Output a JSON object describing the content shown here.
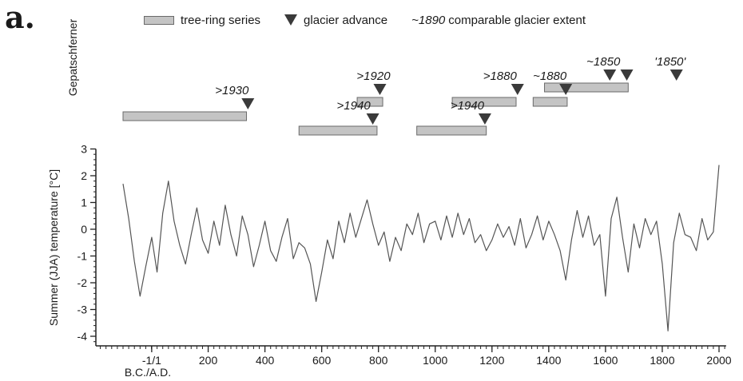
{
  "panel_letter": "a.",
  "legend": {
    "tree_ring": "tree-ring series",
    "glacier_advance": "glacier advance",
    "comparable_prefix": "~1890",
    "comparable_rest": "comparable glacier extent"
  },
  "glacier_name": "Gepatschferner",
  "colors": {
    "bar_fill": "#c4c4c4",
    "bar_stroke": "#6a6a6a",
    "marker": "#3a3a3a",
    "line": "#555555"
  },
  "tree_ring_series": [
    {
      "start": -100,
      "end": 335
    },
    {
      "start": 520,
      "end": 795
    },
    {
      "start": 725,
      "end": 815
    },
    {
      "start": 935,
      "end": 1180
    },
    {
      "start": 1060,
      "end": 1285
    },
    {
      "start": 1345,
      "end": 1465
    },
    {
      "start": 1385,
      "end": 1680
    }
  ],
  "glacier_advances": [
    {
      "year": 340,
      "label": ">1930"
    },
    {
      "year": 805,
      "label": ">1920"
    },
    {
      "year": 780,
      "label": ">1940"
    },
    {
      "year": 1290,
      "label": ">1880"
    },
    {
      "year": 1460,
      "label": "~1880"
    },
    {
      "year": 1175,
      "label": ">1940"
    },
    {
      "year": 1615,
      "label": "~1850"
    },
    {
      "year": 1675,
      "label": ""
    },
    {
      "year": 1850,
      "label": "'1850'"
    }
  ],
  "chart_data": {
    "type": "line",
    "ylabel": "Summer (JJA) temperature [°C]",
    "xlabel": "B.C./A.D.",
    "xlim": [
      -190,
      2025
    ],
    "ylim": [
      -4.2,
      3.0
    ],
    "x_ticks": [
      {
        "value": 1,
        "label": "-1/1"
      },
      {
        "value": 200,
        "label": "200"
      },
      {
        "value": 400,
        "label": "400"
      },
      {
        "value": 600,
        "label": "600"
      },
      {
        "value": 800,
        "label": "800"
      },
      {
        "value": 1000,
        "label": "1000"
      },
      {
        "value": 1200,
        "label": "1200"
      },
      {
        "value": 1400,
        "label": "1400"
      },
      {
        "value": 1600,
        "label": "1600"
      },
      {
        "value": 1800,
        "label": "1800"
      },
      {
        "value": 2000,
        "label": "2000"
      }
    ],
    "y_ticks": [
      {
        "value": 3,
        "label": "3"
      },
      {
        "value": 2,
        "label": "2"
      },
      {
        "value": 1,
        "label": "1"
      },
      {
        "value": 0,
        "label": "0"
      },
      {
        "value": -1,
        "label": "-1"
      },
      {
        "value": -2,
        "label": "-2"
      },
      {
        "value": -3,
        "label": "-3"
      },
      {
        "value": -4,
        "label": "-4"
      }
    ],
    "series": [
      {
        "x": [
          -100,
          -80,
          -60,
          -40,
          -20,
          1,
          20,
          40,
          60,
          80,
          100,
          120,
          140,
          160,
          180,
          200,
          220,
          240,
          260,
          280,
          300,
          320,
          340,
          360,
          380,
          400,
          420,
          440,
          460,
          480,
          500,
          520,
          540,
          560,
          580,
          600,
          620,
          640,
          660,
          680,
          700,
          720,
          740,
          760,
          780,
          800,
          820,
          840,
          860,
          880,
          900,
          920,
          940,
          960,
          980,
          1000,
          1020,
          1040,
          1060,
          1080,
          1100,
          1120,
          1140,
          1160,
          1180,
          1200,
          1220,
          1240,
          1260,
          1280,
          1300,
          1320,
          1340,
          1360,
          1380,
          1400,
          1420,
          1440,
          1460,
          1480,
          1500,
          1520,
          1540,
          1560,
          1580,
          1600,
          1620,
          1640,
          1660,
          1680,
          1700,
          1720,
          1740,
          1760,
          1780,
          1800,
          1820,
          1840,
          1860,
          1880,
          1900,
          1920,
          1940,
          1960,
          1980,
          2000
        ],
        "y": [
          1.7,
          0.4,
          -1.2,
          -2.5,
          -1.4,
          -0.3,
          -1.6,
          0.6,
          1.8,
          0.3,
          -0.6,
          -1.3,
          -0.2,
          0.8,
          -0.4,
          -0.9,
          0.3,
          -0.6,
          0.9,
          -0.2,
          -1.0,
          0.5,
          -0.2,
          -1.4,
          -0.6,
          0.3,
          -0.8,
          -1.2,
          -0.3,
          0.4,
          -1.1,
          -0.5,
          -0.7,
          -1.3,
          -2.7,
          -1.6,
          -0.4,
          -1.1,
          0.3,
          -0.5,
          0.6,
          -0.3,
          0.4,
          1.1,
          0.2,
          -0.6,
          -0.1,
          -1.2,
          -0.3,
          -0.8,
          0.2,
          -0.2,
          0.6,
          -0.5,
          0.2,
          0.3,
          -0.4,
          0.5,
          -0.3,
          0.6,
          -0.2,
          0.4,
          -0.5,
          -0.2,
          -0.8,
          -0.4,
          0.2,
          -0.3,
          0.1,
          -0.6,
          0.4,
          -0.7,
          -0.2,
          0.5,
          -0.4,
          0.3,
          -0.2,
          -0.8,
          -1.9,
          -0.4,
          0.7,
          -0.3,
          0.5,
          -0.6,
          -0.2,
          -2.5,
          0.4,
          1.2,
          -0.3,
          -1.6,
          0.2,
          -0.7,
          0.4,
          -0.2,
          0.3,
          -1.3,
          -3.8,
          -0.5,
          0.6,
          -0.2,
          -0.3,
          -0.8,
          0.4,
          -0.4,
          -0.1,
          2.4
        ]
      }
    ]
  }
}
